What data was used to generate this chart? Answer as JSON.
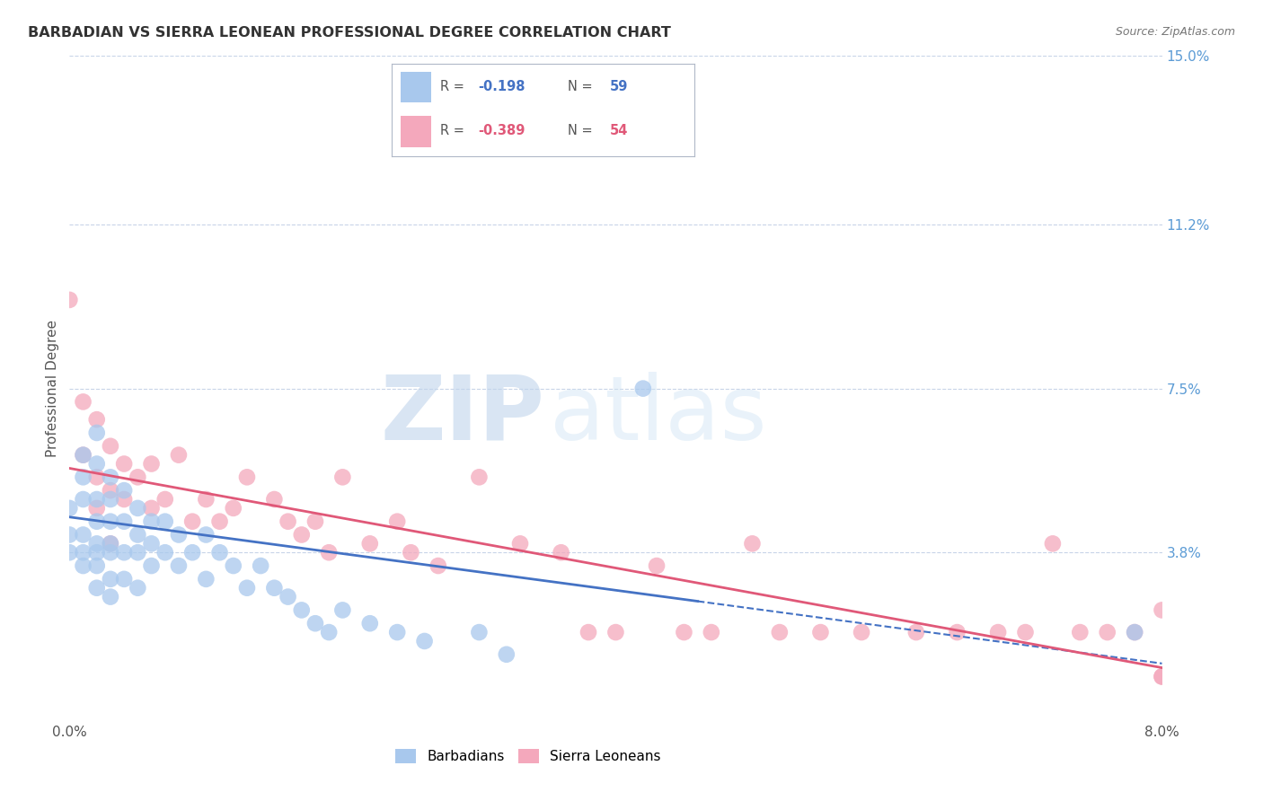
{
  "title": "BARBADIAN VS SIERRA LEONEAN PROFESSIONAL DEGREE CORRELATION CHART",
  "source": "Source: ZipAtlas.com",
  "ylabel": "Professional Degree",
  "watermark_zip": "ZIP",
  "watermark_atlas": "atlas",
  "xlim": [
    0.0,
    0.08
  ],
  "ylim": [
    0.0,
    0.15
  ],
  "ytick_labels_right": [
    "15.0%",
    "11.2%",
    "7.5%",
    "3.8%"
  ],
  "ytick_vals_right": [
    0.15,
    0.112,
    0.075,
    0.038
  ],
  "barbadian_R": "-0.198",
  "barbadian_N": "59",
  "sierraleone_R": "-0.389",
  "sierraleone_N": "54",
  "barbadian_color": "#a8c8ed",
  "sierraleone_color": "#f4a8bc",
  "barbadian_line_color": "#4472c4",
  "sierraleone_line_color": "#e05878",
  "legend_border_color": "#b0b8c8",
  "grid_color": "#c8d4e8",
  "background_color": "#ffffff",
  "title_fontsize": 11.5,
  "barbadian_x": [
    0.0,
    0.0,
    0.0,
    0.001,
    0.001,
    0.001,
    0.001,
    0.001,
    0.001,
    0.002,
    0.002,
    0.002,
    0.002,
    0.002,
    0.002,
    0.002,
    0.002,
    0.003,
    0.003,
    0.003,
    0.003,
    0.003,
    0.003,
    0.003,
    0.004,
    0.004,
    0.004,
    0.004,
    0.005,
    0.005,
    0.005,
    0.005,
    0.006,
    0.006,
    0.006,
    0.007,
    0.007,
    0.008,
    0.008,
    0.009,
    0.01,
    0.01,
    0.011,
    0.012,
    0.013,
    0.014,
    0.015,
    0.016,
    0.017,
    0.018,
    0.019,
    0.02,
    0.022,
    0.024,
    0.026,
    0.03,
    0.032,
    0.042,
    0.078
  ],
  "barbadian_y": [
    0.048,
    0.042,
    0.038,
    0.06,
    0.055,
    0.05,
    0.042,
    0.038,
    0.035,
    0.065,
    0.058,
    0.05,
    0.045,
    0.04,
    0.038,
    0.035,
    0.03,
    0.055,
    0.05,
    0.045,
    0.04,
    0.038,
    0.032,
    0.028,
    0.052,
    0.045,
    0.038,
    0.032,
    0.048,
    0.042,
    0.038,
    0.03,
    0.045,
    0.04,
    0.035,
    0.045,
    0.038,
    0.042,
    0.035,
    0.038,
    0.042,
    0.032,
    0.038,
    0.035,
    0.03,
    0.035,
    0.03,
    0.028,
    0.025,
    0.022,
    0.02,
    0.025,
    0.022,
    0.02,
    0.018,
    0.02,
    0.015,
    0.075,
    0.02
  ],
  "sierraleone_x": [
    0.0,
    0.001,
    0.001,
    0.002,
    0.002,
    0.002,
    0.003,
    0.003,
    0.003,
    0.004,
    0.004,
    0.005,
    0.006,
    0.006,
    0.007,
    0.008,
    0.009,
    0.01,
    0.011,
    0.012,
    0.013,
    0.015,
    0.016,
    0.017,
    0.018,
    0.019,
    0.02,
    0.022,
    0.024,
    0.025,
    0.027,
    0.03,
    0.033,
    0.036,
    0.038,
    0.04,
    0.043,
    0.045,
    0.047,
    0.05,
    0.052,
    0.055,
    0.058,
    0.062,
    0.065,
    0.068,
    0.07,
    0.072,
    0.074,
    0.076,
    0.078,
    0.08,
    0.08,
    0.08
  ],
  "sierraleone_y": [
    0.095,
    0.072,
    0.06,
    0.068,
    0.055,
    0.048,
    0.062,
    0.052,
    0.04,
    0.058,
    0.05,
    0.055,
    0.058,
    0.048,
    0.05,
    0.06,
    0.045,
    0.05,
    0.045,
    0.048,
    0.055,
    0.05,
    0.045,
    0.042,
    0.045,
    0.038,
    0.055,
    0.04,
    0.045,
    0.038,
    0.035,
    0.055,
    0.04,
    0.038,
    0.02,
    0.02,
    0.035,
    0.02,
    0.02,
    0.04,
    0.02,
    0.02,
    0.02,
    0.02,
    0.02,
    0.02,
    0.02,
    0.04,
    0.02,
    0.02,
    0.02,
    0.025,
    0.01,
    0.01
  ],
  "barb_trend_x0": 0.0,
  "barb_trend_x1": 0.046,
  "barb_trend_y0": 0.046,
  "barb_trend_y1": 0.027,
  "sl_trend_x0": 0.0,
  "sl_trend_x1": 0.08,
  "sl_trend_y0": 0.057,
  "sl_trend_y1": 0.012
}
